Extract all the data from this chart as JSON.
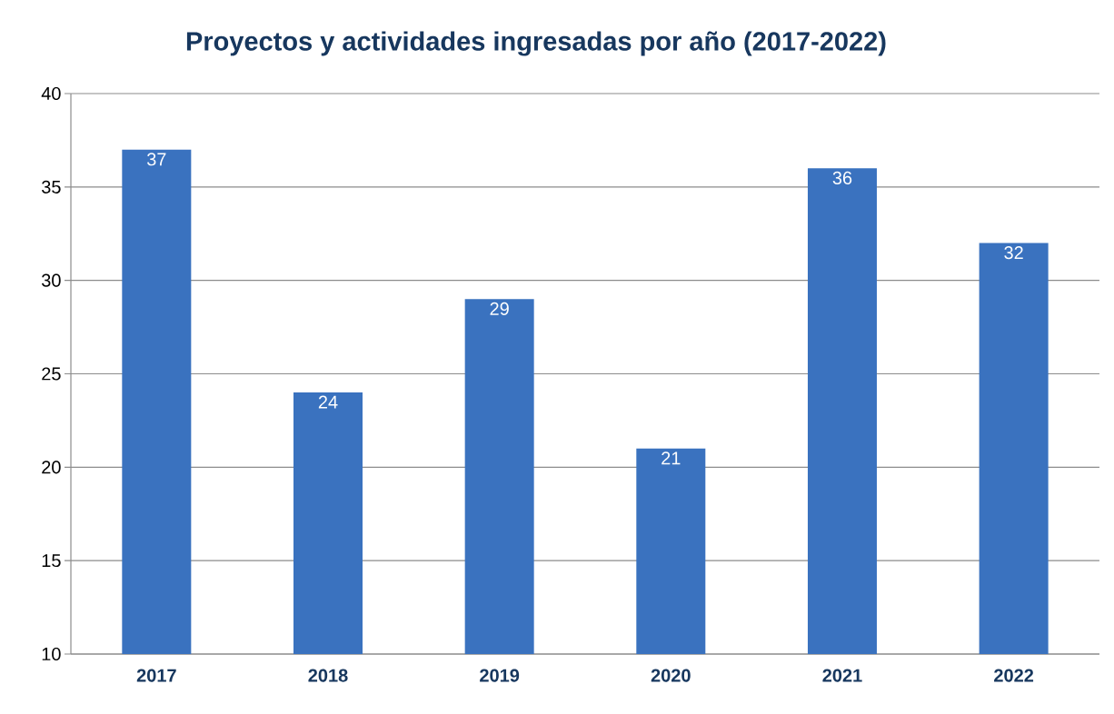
{
  "chart_data": {
    "type": "bar",
    "title": "Proyectos y actividades ingresadas por año (2017-2022)",
    "categories": [
      "2017",
      "2018",
      "2019",
      "2020",
      "2021",
      "2022"
    ],
    "values": [
      37,
      24,
      29,
      21,
      36,
      32
    ],
    "color": "#3a72bf",
    "ylim": [
      10,
      40
    ],
    "yticks": [
      10,
      15,
      20,
      25,
      30,
      35,
      40
    ],
    "grid": "y",
    "data_labels": true
  }
}
